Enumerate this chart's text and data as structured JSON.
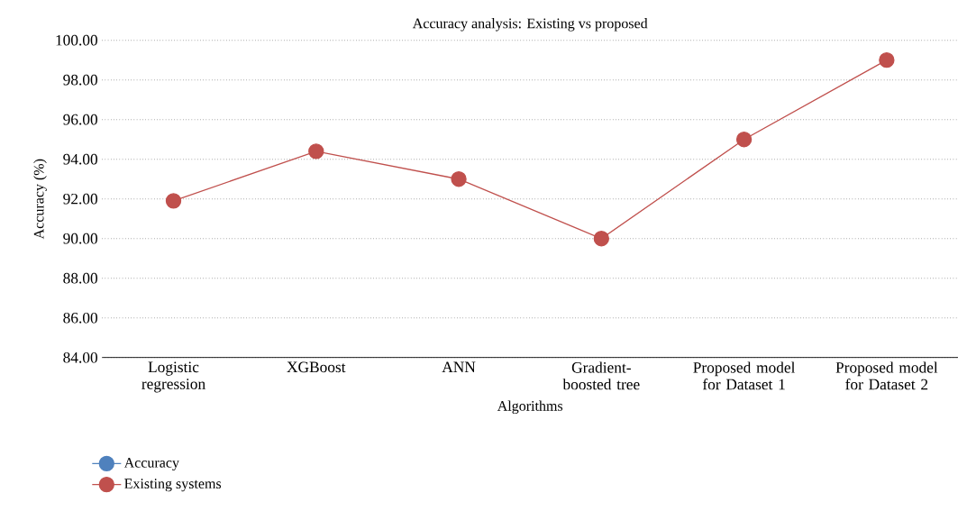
{
  "chart_data": {
    "type": "line",
    "title": "Accuracy analysis: Existing vs proposed",
    "xlabel": "Algorithms",
    "ylabel": "Accuracy (%)",
    "categories": [
      "Logistic regression",
      "XGBoost",
      "ANN",
      "Gradient-boosted tree",
      "Proposed model for Dataset 1",
      "Proposed model for Dataset 2"
    ],
    "series": [
      {
        "name": "Accuracy",
        "color": "#4f81bd",
        "values": [
          null,
          null,
          null,
          null,
          null,
          null
        ]
      },
      {
        "name": "Existing systems",
        "color": "#c0504d",
        "values": [
          91.9,
          94.4,
          93.0,
          90.0,
          95.0,
          99.0
        ]
      }
    ],
    "ylim": [
      84,
      100
    ],
    "yticks": [
      {
        "value": 84,
        "label": "84.00"
      },
      {
        "value": 86,
        "label": "86.00"
      },
      {
        "value": 88,
        "label": "88.00"
      },
      {
        "value": 90,
        "label": "90.00"
      },
      {
        "value": 92,
        "label": "92.00"
      },
      {
        "value": 94,
        "label": "94.00"
      },
      {
        "value": 96,
        "label": "96.00"
      },
      {
        "value": 98,
        "label": "98.00"
      },
      {
        "value": 100,
        "label": "100.00"
      }
    ],
    "grid": "y",
    "legend": "bottom left",
    "marker": "circle",
    "line_style": "solid"
  }
}
